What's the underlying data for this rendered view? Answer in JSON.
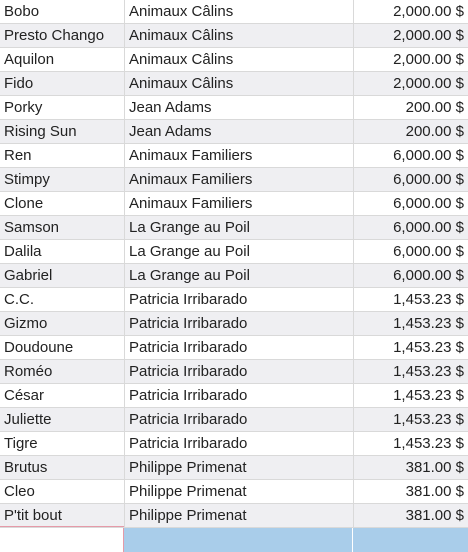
{
  "rows": [
    {
      "name": "Bobo",
      "owner": "Animaux Câlins",
      "amount": "2,000.00 $"
    },
    {
      "name": "Presto Chango",
      "owner": "Animaux Câlins",
      "amount": "2,000.00 $"
    },
    {
      "name": "Aquilon",
      "owner": "Animaux Câlins",
      "amount": "2,000.00 $"
    },
    {
      "name": "Fido",
      "owner": "Animaux Câlins",
      "amount": "2,000.00 $"
    },
    {
      "name": "Porky",
      "owner": "Jean Adams",
      "amount": "200.00 $"
    },
    {
      "name": "Rising Sun",
      "owner": "Jean Adams",
      "amount": "200.00 $"
    },
    {
      "name": "Ren",
      "owner": "Animaux Familiers",
      "amount": "6,000.00 $"
    },
    {
      "name": "Stimpy",
      "owner": "Animaux Familiers",
      "amount": "6,000.00 $"
    },
    {
      "name": "Clone",
      "owner": "Animaux Familiers",
      "amount": "6,000.00 $"
    },
    {
      "name": "Samson",
      "owner": "La Grange au Poil",
      "amount": "6,000.00 $"
    },
    {
      "name": "Dalila",
      "owner": "La Grange au Poil",
      "amount": "6,000.00 $"
    },
    {
      "name": "Gabriel",
      "owner": "La Grange au Poil",
      "amount": "6,000.00 $"
    },
    {
      "name": "C.C.",
      "owner": "Patricia Irribarado",
      "amount": "1,453.23 $"
    },
    {
      "name": "Gizmo",
      "owner": "Patricia Irribarado",
      "amount": "1,453.23 $"
    },
    {
      "name": "Doudoune",
      "owner": "Patricia Irribarado",
      "amount": "1,453.23 $"
    },
    {
      "name": "Roméo",
      "owner": "Patricia Irribarado",
      "amount": "1,453.23 $"
    },
    {
      "name": "César",
      "owner": "Patricia Irribarado",
      "amount": "1,453.23 $"
    },
    {
      "name": "Juliette",
      "owner": "Patricia Irribarado",
      "amount": "1,453.23 $"
    },
    {
      "name": "Tigre",
      "owner": "Patricia Irribarado",
      "amount": "1,453.23 $"
    },
    {
      "name": "Brutus",
      "owner": "Philippe Primenat",
      "amount": "381.00 $"
    },
    {
      "name": "Cleo",
      "owner": "Philippe Primenat",
      "amount": "381.00 $"
    },
    {
      "name": "P'tit bout",
      "owner": "Philippe Primenat",
      "amount": "381.00 $"
    }
  ],
  "colors": {
    "alt_row": "#efeff2",
    "grid": "#d9d9d9",
    "selection": "#a9cdea",
    "active_border": "#e59aa8"
  }
}
